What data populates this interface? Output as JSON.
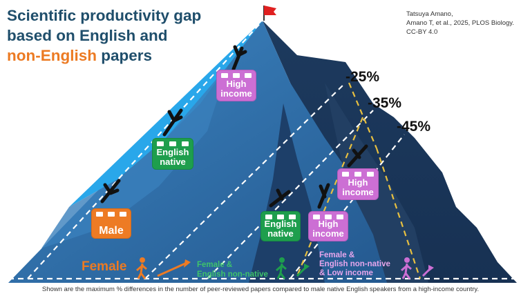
{
  "title": {
    "line1": "Scientific productivity gap",
    "line2": "based on English and",
    "line3_highlight": "non-English",
    "line3_rest": " papers"
  },
  "credit": {
    "line1": "Tatsuya Amano,",
    "line2": "Amano T, et al., 2025, PLOS Biology.",
    "line3": "CC-BY 4.0"
  },
  "percentages": [
    "-25%",
    "-35%",
    "-45%"
  ],
  "cabins": {
    "high_income_top": [
      "High",
      "income"
    ],
    "english_native_left": [
      "English",
      "native"
    ],
    "male": "Male",
    "english_native_mid": [
      "English",
      "native"
    ],
    "high_income_mid": [
      "High",
      "income"
    ],
    "high_income_right": [
      "High",
      "income"
    ]
  },
  "start_groups": {
    "female": "Female",
    "female_english_non_native": [
      "Female &",
      "English non-native"
    ],
    "female_non_native_low_income": [
      "Female &",
      "English non-native",
      "& Low income"
    ]
  },
  "caption": "Shown are the maximum % differences in the number of peer-reviewed papers compared to male native English speakers from a high-income country.",
  "colors": {
    "title": "#1f4e6b",
    "orange": "#ec7a22",
    "green": "#1e9e4d",
    "pink": "#cc6fd4",
    "mountain_dark": "#1f3f66",
    "mountain_mid": "#2f6fa6",
    "mountain_light": "#29a7ea",
    "flag": "#e02020"
  }
}
